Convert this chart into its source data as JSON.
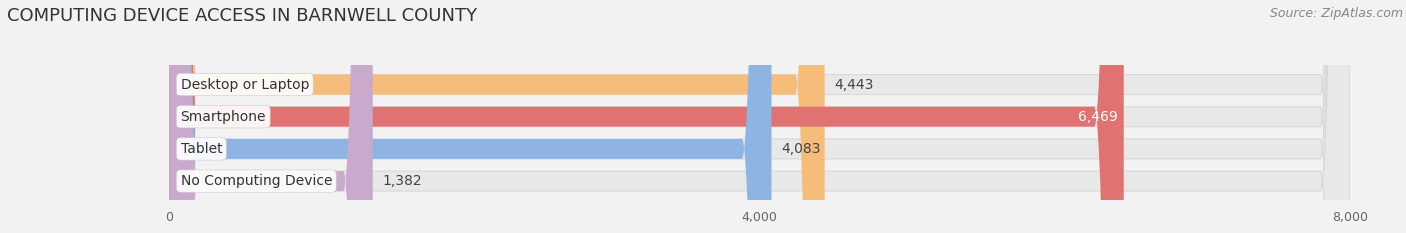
{
  "title": "COMPUTING DEVICE ACCESS IN BARNWELL COUNTY",
  "source": "Source: ZipAtlas.com",
  "categories": [
    "Desktop or Laptop",
    "Smartphone",
    "Tablet",
    "No Computing Device"
  ],
  "values": [
    4443,
    6469,
    4083,
    1382
  ],
  "bar_colors": [
    "#F5BC7A",
    "#E07272",
    "#8EB4E3",
    "#C9AACC"
  ],
  "label_in_bar": [
    false,
    true,
    false,
    false
  ],
  "background_color": "#f2f2f2",
  "bar_bg_color": "#e8e8e8",
  "xlim": [
    0,
    8000
  ],
  "xticks": [
    0,
    4000,
    8000
  ],
  "title_fontsize": 13,
  "source_fontsize": 9,
  "bar_label_fontsize": 10,
  "category_fontsize": 10,
  "fig_width": 14.06,
  "fig_height": 2.33
}
